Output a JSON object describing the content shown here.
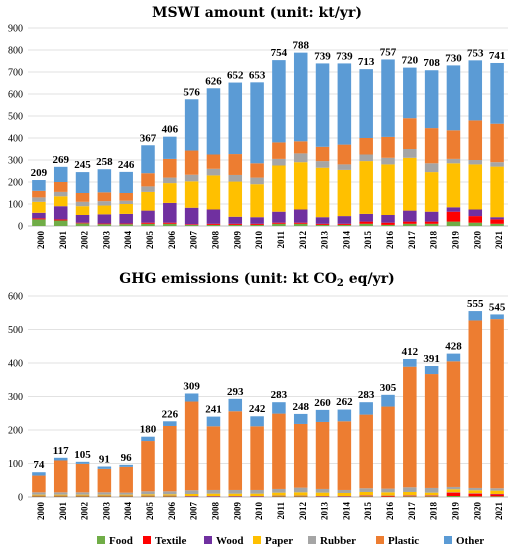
{
  "legend": [
    {
      "name": "Food",
      "color": "#70ad47"
    },
    {
      "name": "Textile",
      "color": "#ff0000"
    },
    {
      "name": "Wood",
      "color": "#7030a0"
    },
    {
      "name": "Paper",
      "color": "#ffc000"
    },
    {
      "name": "Rubber",
      "color": "#a5a5a5"
    },
    {
      "name": "Plastic",
      "color": "#ed7d31"
    },
    {
      "name": "Other",
      "color": "#5b9bd5"
    }
  ],
  "chart_data": [
    {
      "type": "bar",
      "stacked": true,
      "title": "MSWI amount (unit: kt/yr)",
      "categories": [
        "2000",
        "2001",
        "2002",
        "2003",
        "2004",
        "2005",
        "2006",
        "2007",
        "2008",
        "2009",
        "2010",
        "2011",
        "2012",
        "2013",
        "2014",
        "2015",
        "2016",
        "2017",
        "2018",
        "2019",
        "2020",
        "2021"
      ],
      "totals": [
        209,
        269,
        245,
        258,
        246,
        367,
        406,
        576,
        626,
        652,
        653,
        754,
        788,
        739,
        739,
        713,
        757,
        720,
        708,
        730,
        753,
        741
      ],
      "ylim": [
        0,
        900
      ],
      "yticks": [
        0,
        100,
        200,
        300,
        400,
        500,
        600,
        700,
        800,
        900
      ],
      "grid": true,
      "series": [
        {
          "name": "Food",
          "values": [
            30,
            25,
            12,
            8,
            8,
            10,
            10,
            5,
            5,
            5,
            5,
            10,
            10,
            5,
            5,
            10,
            5,
            10,
            10,
            20,
            15,
            10
          ]
        },
        {
          "name": "Textile",
          "values": [
            5,
            5,
            3,
            3,
            3,
            5,
            5,
            3,
            5,
            5,
            5,
            5,
            5,
            5,
            5,
            10,
            10,
            10,
            10,
            45,
            30,
            20
          ]
        },
        {
          "name": "Wood",
          "values": [
            25,
            60,
            35,
            42,
            44,
            55,
            90,
            75,
            65,
            32,
            30,
            50,
            60,
            30,
            35,
            35,
            35,
            50,
            45,
            20,
            30,
            10
          ]
        },
        {
          "name": "Paper",
          "values": [
            50,
            45,
            40,
            40,
            45,
            85,
            90,
            120,
            155,
            160,
            150,
            210,
            215,
            225,
            210,
            240,
            230,
            240,
            180,
            200,
            205,
            230
          ]
        },
        {
          "name": "Rubber",
          "values": [
            20,
            20,
            20,
            20,
            15,
            25,
            25,
            30,
            30,
            30,
            30,
            30,
            40,
            30,
            25,
            30,
            30,
            40,
            40,
            20,
            20,
            20
          ]
        },
        {
          "name": "Plastic",
          "values": [
            30,
            45,
            40,
            40,
            35,
            60,
            85,
            110,
            65,
            95,
            65,
            75,
            55,
            65,
            90,
            75,
            95,
            140,
            160,
            130,
            180,
            175
          ]
        },
        {
          "name": "Other",
          "values": [
            49,
            69,
            95,
            105,
            96,
            127,
            101,
            233,
            301,
            325,
            368,
            374,
            403,
            379,
            369,
            313,
            352,
            230,
            263,
            295,
            273,
            276
          ]
        }
      ]
    },
    {
      "type": "bar",
      "stacked": true,
      "title": "GHG emissions (unit: kt CO",
      "title_sub": "2",
      "title_rest": " eq/yr)",
      "categories": [
        "2000",
        "2001",
        "2002",
        "2003",
        "2004",
        "2005",
        "2006",
        "2007",
        "2008",
        "2009",
        "2010",
        "2011",
        "2012",
        "2013",
        "2014",
        "2015",
        "2016",
        "2017",
        "2018",
        "2019",
        "2020",
        "2021"
      ],
      "totals": [
        74,
        117,
        105,
        91,
        96,
        180,
        226,
        309,
        241,
        293,
        242,
        283,
        248,
        260,
        262,
        283,
        305,
        412,
        391,
        428,
        555,
        545
      ],
      "ylim": [
        0,
        600
      ],
      "yticks": [
        0,
        100,
        200,
        300,
        400,
        500,
        600
      ],
      "grid": true,
      "series": [
        {
          "name": "Food",
          "values": [
            2,
            2,
            2,
            2,
            2,
            2,
            2,
            1,
            1,
            1,
            1,
            2,
            2,
            1,
            1,
            2,
            1,
            2,
            2,
            3,
            2,
            2
          ]
        },
        {
          "name": "Textile",
          "values": [
            1,
            1,
            1,
            1,
            1,
            1,
            1,
            1,
            1,
            1,
            1,
            1,
            1,
            1,
            1,
            2,
            2,
            2,
            2,
            10,
            8,
            6
          ]
        },
        {
          "name": "Wood",
          "values": [
            1,
            1,
            1,
            1,
            1,
            1,
            1,
            1,
            1,
            1,
            1,
            1,
            1,
            1,
            1,
            1,
            1,
            1,
            1,
            1,
            1,
            1
          ]
        },
        {
          "name": "Paper",
          "values": [
            3,
            3,
            3,
            3,
            3,
            4,
            4,
            6,
            7,
            7,
            7,
            9,
            10,
            10,
            9,
            10,
            10,
            10,
            8,
            9,
            9,
            10
          ]
        },
        {
          "name": "Rubber",
          "values": [
            7,
            7,
            7,
            7,
            6,
            9,
            9,
            11,
            11,
            11,
            11,
            11,
            14,
            11,
            9,
            11,
            11,
            14,
            14,
            7,
            7,
            7
          ]
        },
        {
          "name": "Plastic",
          "values": [
            50,
            95,
            85,
            70,
            77,
            150,
            195,
            265,
            190,
            235,
            190,
            225,
            190,
            200,
            205,
            220,
            245,
            360,
            340,
            375,
            500,
            505
          ]
        },
        {
          "name": "Other",
          "values": [
            10,
            8,
            6,
            7,
            6,
            13,
            14,
            24,
            29,
            37,
            30,
            34,
            30,
            36,
            35,
            37,
            35,
            23,
            24,
            23,
            28,
            14
          ]
        }
      ]
    }
  ]
}
